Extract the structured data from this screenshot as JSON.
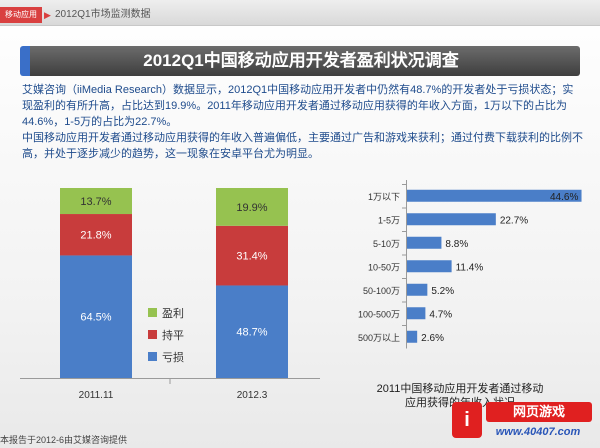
{
  "header": {
    "section_tag": "移动应用",
    "arrow": "▶",
    "section_sub": "2012Q1市场监测数据"
  },
  "title": "2012Q1中国移动应用开发者盈利状况调查",
  "paragraphs": [
    "艾媒咨询（iiMedia Research）数据显示，2012Q1中国移动应用开发者中仍然有48.7%的开发者处于亏损状态；实现盈利的有所升高，占比达到19.9%。2011年移动应用开发者通过移动应用获得的年收入方面，1万以下的占比为44.6%，1-5万的占比为22.7%。",
    "中国移动应用开发者通过移动应用获得的年收入普遍偏低，主要通过广告和游戏来获利；通过付费下载获利的比例不高，并处于逐步减少的趋势，这一现象在安卓平台尤为明显。"
  ],
  "chart_data": [
    {
      "type": "bar",
      "stacked": true,
      "percent": true,
      "categories": [
        "2011.11",
        "2012.3"
      ],
      "series": [
        {
          "name": "亏损",
          "values": [
            64.5,
            48.7
          ],
          "labels": [
            "64.5%",
            "48.7%"
          ],
          "color": "#4a7ec8"
        },
        {
          "name": "持平",
          "values": [
            21.8,
            31.4
          ],
          "labels": [
            "21.8%",
            "31.4%"
          ],
          "color": "#c83c3c"
        },
        {
          "name": "盈利",
          "values": [
            13.7,
            19.9
          ],
          "labels": [
            "13.7%",
            "19.9%"
          ],
          "color": "#96c250"
        }
      ],
      "legend_order": [
        "盈利",
        "持平",
        "亏损"
      ],
      "legend_position": "right",
      "ylim": [
        0,
        100
      ]
    },
    {
      "type": "bar",
      "orientation": "horizontal",
      "categories": [
        "1万以下",
        "1-5万",
        "5-10万",
        "10-50万",
        "50-100万",
        "100-500万",
        "500万以上"
      ],
      "values": [
        44.6,
        22.7,
        8.8,
        11.4,
        5.2,
        4.7,
        2.6
      ],
      "labels": [
        "44.6%",
        "22.7%",
        "8.8%",
        "11.4%",
        "5.2%",
        "4.7%",
        "2.6%"
      ],
      "color": "#4a7ec8",
      "title": "2011中国移动应用开发者通过移动应用获得的年收入状况",
      "xlim": [
        0,
        46
      ]
    }
  ],
  "footer": "本报告于2012-6由艾媒咨询提供",
  "watermark": {
    "logo": "i",
    "main": "网页游戏",
    "url": "www.40407.com"
  }
}
